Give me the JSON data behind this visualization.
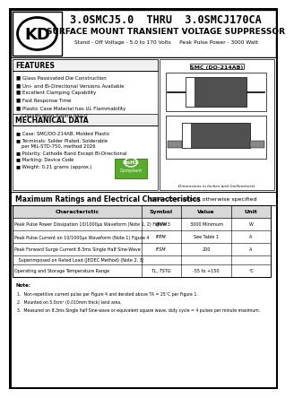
{
  "title_line1": "3.0SMCJ5.0  THRU  3.0SMCJ170CA",
  "title_line2": "SURFACE MOUNT TRANSIENT VOLTAGE SUPPRESSOR",
  "title_line3": "Stand - Off Voltage - 5.0 to 170 Volts     Peak Pulse Power - 3000 Watt",
  "features_title": "FEATURES",
  "features": [
    "Glass Passivated Die Construction",
    "Uni- and Bi-Directional Versions Available",
    "Excellent Clamping Capability",
    "Fast Response Time",
    "Plastic Case Material has UL Flammability",
    "   Classification Rating 94V-0"
  ],
  "mech_title": "MECHANICAL DATA",
  "mech_data": [
    "Case: SMC/DO-214AB, Molded Plastic",
    "Terminals: Solder Plated, Solderable",
    "   per MIL-STD-750, method 2026",
    "Polarity: Cathode Band Except Bi-Directional",
    "Marking: Device Code",
    "Weight: 0.21 grams (approx.)"
  ],
  "table_title_bold": "Maximum Ratings and Electrical Characteristics",
  "table_title_normal": " @TA=25°C unless otherwise specified",
  "table_headers": [
    "Characteristic",
    "Symbol",
    "Value",
    "Unit"
  ],
  "table_rows": [
    [
      "Peak Pulse Power Dissipation 10/1000μs Waveform (Note 1, 2) Figure 3",
      "PPPM",
      "3000 Minimum",
      "W"
    ],
    [
      "Peak Pulse Current on 10/1000μs Waveform (Note 1) Figure 4",
      "IPPM",
      "See Table 1",
      "A"
    ],
    [
      "Peak Forward Surge Current 8.3ms Single Half Sine-Wave",
      "IFSM",
      "200",
      "A"
    ],
    [
      "   Superimposed on Rated Load (JEDEC Method) (Note 2, 3)",
      "",
      "",
      ""
    ],
    [
      "Operating and Storage Temperature Range",
      "TL, TSTG",
      "-55 to +150",
      "°C"
    ]
  ],
  "notes_title": "Note:",
  "notes": [
    "1.  Non-repetitive current pulse per Figure 4 and derated above TA = 25°C per Figure 1.",
    "2.  Mounted on 5.0cm² (0.010mm thick) land area.",
    "3.  Measured on 8.3ms Single half Sine-wave or equivalent square wave, duty cycle = 4 pulses per minute maximum."
  ],
  "diode_label": "SMC (DO-214AB)",
  "dimensions_note": "Dimensions in Inches and (millimeters)",
  "logo_text": "KD",
  "bg_color": "#ffffff",
  "border_color": "#000000",
  "section_bg": "#f0f0f0",
  "header_bg": "#d8d8d8"
}
